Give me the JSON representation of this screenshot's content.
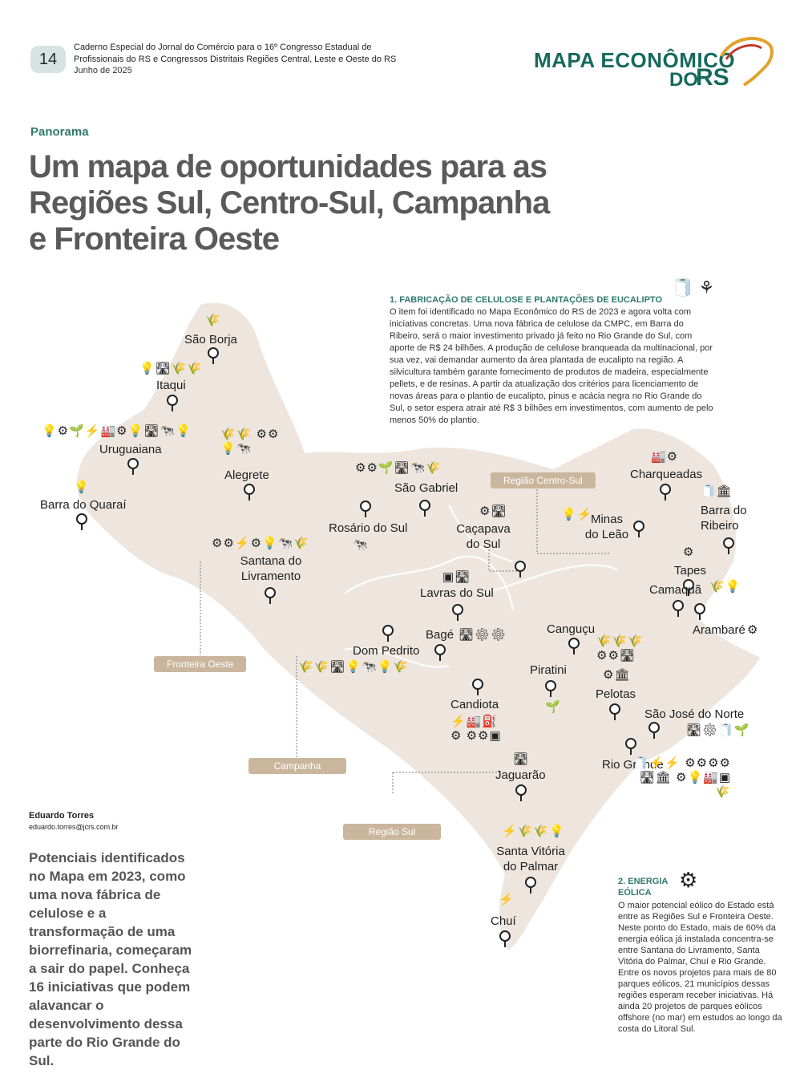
{
  "header": {
    "page_number": "14",
    "publication_text": "Caderno Especial do Jornal do Comércio para o 16º Congresso Estadual de Profissionais do RS e Congressos Distritais Regiões Central, Leste e Oeste do RS",
    "date": "Junho de 2025",
    "logo_line1": "MAPA ECONÔMICO",
    "logo_line2": "DO",
    "logo_rs": "RS"
  },
  "article": {
    "section": "Panorama",
    "headline": "Um mapa de oportunidades para as Regiões Sul, Centro-Sul, Campanha e Fronteira Oeste",
    "author": "Eduardo Torres",
    "author_email": "eduardo.torres@jcrs.com.br",
    "lead": "Potenciais identificados no Mapa em 2023, como uma nova fábrica de celulose e a transformação de uma biorrefinaria, começaram a sair do papel. Conheça 16 iniciativas que podem alavancar o desenvolvimento dessa parte do Rio Grande do Sul."
  },
  "box1": {
    "title": "1. FABRICAÇÃO DE CELULOSE E PLANTAÇÕES DE EUCALIPTO",
    "body": "O item foi identificado no Mapa Econômico do RS de 2023 e agora volta com iniciativas concretas. Uma nova fábrica de celulose da CMPC, em Barra do Ribeiro, será o maior investimento privado já feito no Rio Grande do Sul, com aporte de R$ 24 bilhões. A produção de celulose branqueada da multinacional, por sua vez, vai demandar aumento da área plantada de eucalipto na região. A silvicultura também garante fornecimento de produtos de madeira, especialmente pellets, e de resinas. A partir da atualização dos critérios para licenciamento de novas áreas para o plantio de eucalipto, pinus e acácia negra no Rio Grande do Sul, o setor espera atrair até R$ 3 bilhões em investimentos, com aumento de pelo menos 50% do plantio.",
    "icons": "🧻 ⚘"
  },
  "box2": {
    "title": "2. ENERGIA EÓLICA",
    "icon": "⚙",
    "body": "O maior potencial eólico do Estado está entre as Regiões Sul e Fronteira Oeste. Neste ponto do Estado, mais de 60% da energia eólica já instalada concentra-se entre Santana do Livramento, Santa Vitória do Palmar, Chuí e Rio Grande. Entre os novos projetos para mais de 80 parques eólicos, 21 municípios dessas regiões esperam receber iniciativas. Há ainda 20 projetos de parques eólicos offshore (no mar) em estudos ao longo da costa do Litoral Sul."
  },
  "regions": [
    "Região Centro-Sul",
    "Fronteira Oeste",
    "Campanha",
    "Região Sul"
  ],
  "cities": [
    {
      "name": "São Borja",
      "icons": "🌾"
    },
    {
      "name": "Itaqui",
      "icons": "💡🛣🌾🌾"
    },
    {
      "name": "Uruguaiana",
      "icons": "💡⚙🌱⚡🏭⚙💡🛣🐄💡"
    },
    {
      "name": "Barra do Quaraí",
      "icons": "💡"
    },
    {
      "name": "Alegrete",
      "icons": "🌾🌾 ⚙⚙💡🐄"
    },
    {
      "name": "Rosário do Sul",
      "icons": "🐄"
    },
    {
      "name": "São Gabriel",
      "icons": "⚙⚙🌱🛣🐄🌾"
    },
    {
      "name": "Caçapava do Sul",
      "icons": "⚙🛣"
    },
    {
      "name": "Santana do Livramento",
      "icons": "⚙⚙⚡⚙💡🐄🌾"
    },
    {
      "name": "Lavras do Sul",
      "icons": "▣🛣"
    },
    {
      "name": "Bagé",
      "icons": "🛣⚙⚙"
    },
    {
      "name": "Dom Pedrito",
      "icons": "🌾🌾🛣💡🐄💡🌾"
    },
    {
      "name": "Candiota",
      "icons": "⚡🏭⛽⚙ ⚙⚙▣"
    },
    {
      "name": "Charqueadas",
      "icons": "🏭⚙"
    },
    {
      "name": "Minas do Leão",
      "icons": "💡⚡"
    },
    {
      "name": "Barra do Ribeiro",
      "icons": "🧻🏛"
    },
    {
      "name": "Tapes",
      "icons": "⚙"
    },
    {
      "name": "Camaquã",
      "icons": "🌾💡"
    },
    {
      "name": "Arambaré",
      "icons": "⚙"
    },
    {
      "name": "Canguçu",
      "icons": "🌾🌾🌾 ⚙⚙🛣"
    },
    {
      "name": "Piratini",
      "icons": "🌱"
    },
    {
      "name": "Pelotas",
      "icons": "⚙🏛"
    },
    {
      "name": "São José do Norte",
      "icons": "🛣⚙🧻🌱"
    },
    {
      "name": "Rio Grande",
      "icons": "🧻⚡⚡ ⚙⚙⚙⚙🛣🏛 ⚙💡🏭▣🌾"
    },
    {
      "name": "Jaguarão",
      "icons": "🛣"
    },
    {
      "name": "Santa Vitória do Palmar",
      "icons": "⚡🌾🌾💡"
    },
    {
      "name": "Chuí",
      "icons": "⚡"
    }
  ],
  "colors": {
    "map_fill": "#eee6de",
    "accent": "#2f7a6d",
    "region_tag": "#c9b69c",
    "headline": "#5a5a5a"
  }
}
